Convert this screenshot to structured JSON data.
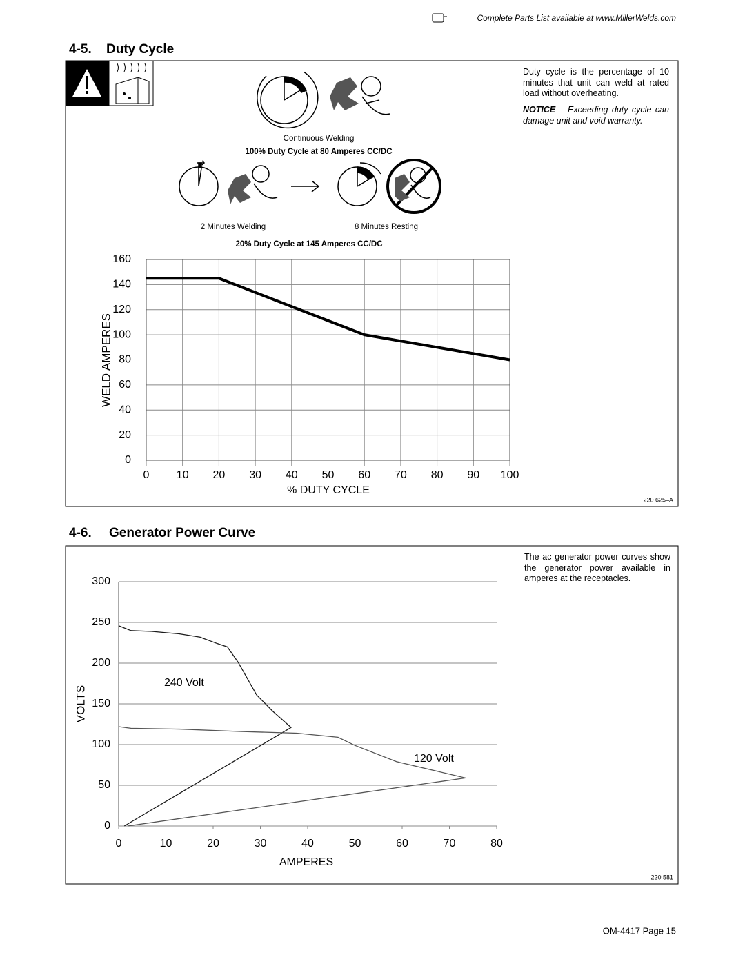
{
  "header_note": "Complete Parts List available at www.MillerWelds.com",
  "sections": [
    {
      "number": "4-5.",
      "title": "Duty Cycle",
      "description": "Duty cycle is the percentage of 10 minutes that unit can weld at rated load without overheating.",
      "notice_label": "NOTICE",
      "notice_text": "– Exceeding duty cycle can damage unit and void warranty.",
      "captions": [
        "Continuous Welding",
        "100% Duty Cycle at 80 Amperes CC/DC",
        "2 Minutes Welding",
        "8 Minutes Resting",
        "20% Duty Cycle at 145 Amperes CC/DC"
      ],
      "figure_id": "220 625–A"
    },
    {
      "number": "4-6.",
      "title": "Generator Power Curve",
      "description": "The ac generator power curves show the generator power available in amperes at the receptacles.",
      "figure_id": "220 581"
    }
  ],
  "footer": "OM-4417 Page 15",
  "chart_data": [
    {
      "type": "line",
      "x_label": "% DUTY CYCLE",
      "y_label": "WELD AMPERES",
      "x": [
        0,
        20,
        60,
        100
      ],
      "values": [
        145,
        145,
        100,
        80
      ],
      "color": "#000000",
      "xlim": [
        0,
        100
      ],
      "xticks": [
        0,
        10,
        20,
        30,
        40,
        50,
        60,
        70,
        80,
        90,
        100
      ],
      "ylim": [
        0,
        160
      ],
      "yticks": [
        0,
        20,
        40,
        60,
        80,
        100,
        120,
        140,
        160
      ],
      "grid": "both"
    },
    {
      "type": "line",
      "x_label": "AMPERES",
      "y_label": "VOLTS",
      "series": [
        {
          "name": "240 Volt",
          "color": "#1a1a1a",
          "x": [
            0,
            2.6,
            7,
            12.8,
            17.2,
            20.9,
            23,
            25.3,
            29.2,
            32.6,
            36.5,
            1.2
          ],
          "values": [
            246,
            240,
            239,
            236,
            232,
            224,
            220,
            201,
            161,
            141,
            121,
            0
          ]
        },
        {
          "name": "120 Volt",
          "color": "#555555",
          "x": [
            0,
            2.6,
            12.8,
            26,
            37.7,
            46.4,
            50,
            58.8,
            73.4,
            1.9
          ],
          "values": [
            122,
            120,
            119,
            116,
            114,
            109,
            99,
            79,
            59,
            0
          ]
        }
      ],
      "xlim": [
        0,
        80
      ],
      "xticks": [
        0,
        10,
        20,
        30,
        40,
        50,
        60,
        70,
        80
      ],
      "ylim": [
        0,
        300
      ],
      "yticks": [
        0,
        50,
        100,
        150,
        200,
        250,
        300
      ],
      "grid": "y"
    }
  ]
}
